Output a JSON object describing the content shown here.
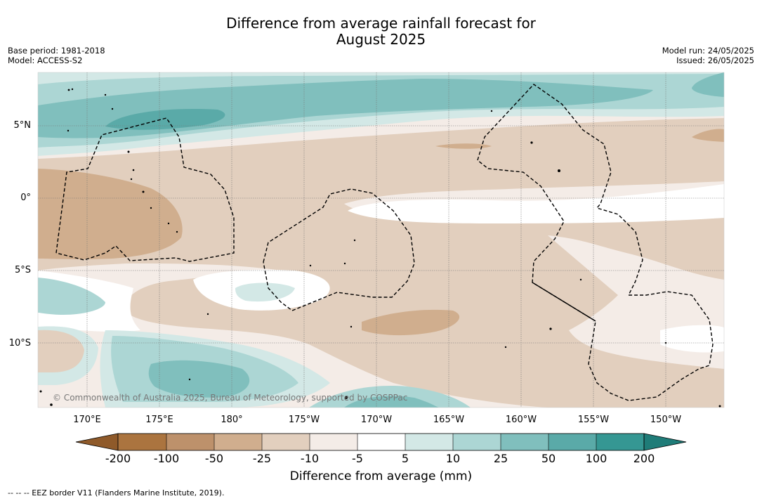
{
  "title_line1": "Difference from average rainfall forecast for",
  "title_line2": "August 2025",
  "base_period": "Base period: 1981-2018",
  "model": "Model: ACCESS-S2",
  "model_run": "Model run: 24/05/2025",
  "issued": "Issued: 26/05/2025",
  "copyright": "© Commonwealth of Australia 2025, Bureau of Meteorology, supported by COSPPac",
  "latitudes": [
    "5°N",
    "0°",
    "5°S",
    "10°S"
  ],
  "longitudes": [
    "170°E",
    "175°E",
    "180°",
    "175°W",
    "170°W",
    "165°W",
    "160°W",
    "155°W",
    "150°W"
  ],
  "colorbar": {
    "ticks": [
      "-200",
      "-100",
      "-50",
      "-25",
      "-10",
      "-5",
      "5",
      "10",
      "25",
      "50",
      "100",
      "200"
    ],
    "colors": [
      "#8f5a2a",
      "#ab743f",
      "#bd916b",
      "#d0ae8e",
      "#e2cfbe",
      "#f4ece7",
      "#ffffff",
      "#d3e8e6",
      "#acd6d4",
      "#80bfbd",
      "#5aaaa8",
      "#359793",
      "#1f7c78"
    ],
    "label": "Difference from average (mm)"
  },
  "footnote": "--  --  -- EEZ border V11 (Flanders Marine Institute, 2019)."
}
